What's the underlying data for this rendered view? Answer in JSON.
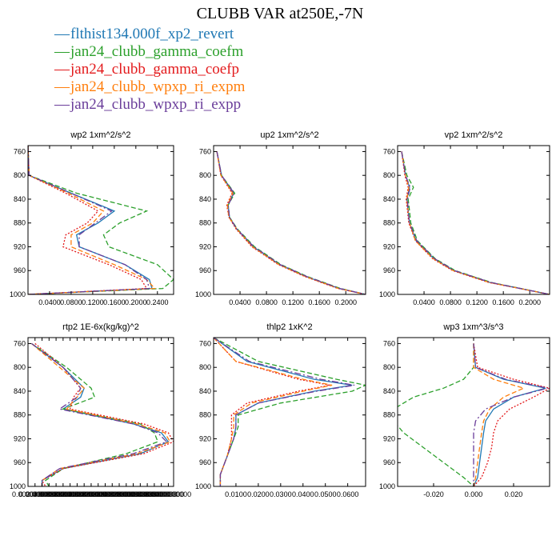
{
  "title": "CLUBB VAR at250E,-7N",
  "legend": [
    {
      "label": "flthist134.000f_xp2_revert",
      "color": "#1f78b4",
      "dash": "solid"
    },
    {
      "label": "jan24_clubb_gamma_coefm",
      "color": "#2ca02c",
      "dash": "dashed"
    },
    {
      "label": "jan24_clubb_gamma_coefp",
      "color": "#e31a1c",
      "dash": "dotted"
    },
    {
      "label": "jan24_clubb_wpxp_ri_expm",
      "color": "#ff7f0e",
      "dash": "dashed"
    },
    {
      "label": "jan24_clubb_wpxp_ri_expp",
      "color": "#6a3d9a",
      "dash": "dashdot"
    }
  ],
  "chart_data": [
    {
      "type": "line",
      "title": "wp2   1xm^2/s^2",
      "ylim": [
        1000,
        750
      ],
      "xlim": [
        0.0,
        0.27
      ],
      "y_ticks": [
        760,
        800,
        840,
        880,
        920,
        960,
        1000
      ],
      "x_ticks": [
        0.04,
        0.08,
        0.12,
        0.16,
        0.2,
        0.24
      ],
      "x_tick_labels": [
        "0.0400",
        "0.0800",
        "0.1200",
        "0.1600",
        "0.2000",
        "0.2400"
      ],
      "y": [
        750,
        800,
        830,
        860,
        880,
        900,
        920,
        950,
        975,
        990,
        1000
      ],
      "series": [
        {
          "values": [
            0.0,
            0.002,
            0.08,
            0.16,
            0.13,
            0.09,
            0.095,
            0.18,
            0.225,
            0.23,
            0.0
          ]
        },
        {
          "values": [
            0.0,
            0.002,
            0.09,
            0.22,
            0.17,
            0.14,
            0.15,
            0.24,
            0.27,
            0.25,
            0.0
          ]
        },
        {
          "values": [
            0.0,
            0.002,
            0.07,
            0.13,
            0.11,
            0.07,
            0.065,
            0.15,
            0.21,
            0.22,
            0.0
          ]
        },
        {
          "values": [
            0.0,
            0.002,
            0.075,
            0.14,
            0.12,
            0.08,
            0.08,
            0.16,
            0.22,
            0.235,
            0.0
          ]
        },
        {
          "values": [
            0.0,
            0.002,
            0.08,
            0.155,
            0.125,
            0.095,
            0.095,
            0.18,
            0.22,
            0.225,
            0.0
          ]
        }
      ]
    },
    {
      "type": "line",
      "title": "up2   1xm^2/s^2",
      "ylim": [
        1000,
        750
      ],
      "xlim": [
        0.0,
        0.23
      ],
      "y_ticks": [
        760,
        800,
        840,
        880,
        920,
        960,
        1000
      ],
      "x_ticks": [
        0.04,
        0.08,
        0.12,
        0.16,
        0.2
      ],
      "x_tick_labels": [
        "0.0400",
        "0.0800",
        "0.1200",
        "0.1600",
        "0.2000"
      ],
      "y": [
        760,
        800,
        830,
        850,
        870,
        890,
        920,
        950,
        970,
        990,
        1000
      ],
      "series": [
        {
          "values": [
            0.005,
            0.012,
            0.03,
            0.022,
            0.024,
            0.035,
            0.06,
            0.1,
            0.14,
            0.19,
            0.23
          ]
        },
        {
          "values": [
            0.005,
            0.012,
            0.032,
            0.022,
            0.024,
            0.036,
            0.062,
            0.102,
            0.142,
            0.192,
            0.23
          ]
        },
        {
          "values": [
            0.005,
            0.011,
            0.028,
            0.02,
            0.023,
            0.034,
            0.058,
            0.098,
            0.138,
            0.188,
            0.23
          ]
        },
        {
          "values": [
            0.005,
            0.011,
            0.029,
            0.021,
            0.023,
            0.035,
            0.059,
            0.099,
            0.139,
            0.189,
            0.23
          ]
        },
        {
          "values": [
            0.005,
            0.012,
            0.031,
            0.022,
            0.024,
            0.035,
            0.061,
            0.101,
            0.141,
            0.191,
            0.23
          ]
        }
      ]
    },
    {
      "type": "line",
      "title": "vp2   1xm^2/s^2",
      "ylim": [
        1000,
        750
      ],
      "xlim": [
        0.0,
        0.23
      ],
      "y_ticks": [
        760,
        800,
        840,
        880,
        920,
        960,
        1000
      ],
      "x_ticks": [
        0.04,
        0.08,
        0.12,
        0.16,
        0.2
      ],
      "x_tick_labels": [
        "0.0400",
        "0.0800",
        "0.1200",
        "0.1600",
        "0.2000"
      ],
      "y": [
        760,
        800,
        820,
        840,
        860,
        880,
        910,
        940,
        960,
        980,
        1000
      ],
      "series": [
        {
          "values": [
            0.006,
            0.012,
            0.018,
            0.014,
            0.016,
            0.018,
            0.028,
            0.055,
            0.085,
            0.14,
            0.23
          ]
        },
        {
          "values": [
            0.006,
            0.014,
            0.024,
            0.016,
            0.018,
            0.02,
            0.03,
            0.057,
            0.087,
            0.142,
            0.23
          ]
        },
        {
          "values": [
            0.006,
            0.011,
            0.016,
            0.013,
            0.015,
            0.017,
            0.027,
            0.053,
            0.083,
            0.138,
            0.23
          ]
        },
        {
          "values": [
            0.006,
            0.012,
            0.017,
            0.014,
            0.016,
            0.018,
            0.027,
            0.054,
            0.084,
            0.139,
            0.23
          ]
        },
        {
          "values": [
            0.006,
            0.012,
            0.019,
            0.015,
            0.016,
            0.018,
            0.029,
            0.056,
            0.086,
            0.141,
            0.23
          ]
        }
      ]
    },
    {
      "type": "line",
      "title": "rtp2   1E-6x(kg/kg)^2",
      "ylim": [
        1000,
        750
      ],
      "xlim": [
        0.0,
        0.0415
      ],
      "y_ticks": [
        760,
        800,
        840,
        880,
        920,
        960,
        1000
      ],
      "x_ticks": [
        0.002,
        0.004,
        0.006,
        0.008,
        0.01,
        0.012,
        0.014,
        0.016,
        0.018,
        0.02,
        0.022,
        0.024,
        0.026,
        0.028,
        0.03,
        0.032,
        0.034,
        0.036,
        0.038,
        0.04
      ],
      "x_tick_labels": [
        "0.0020000000",
        "0.0040000000",
        "0.0060000000",
        "0.0080000000",
        "0.0100000000",
        "0.0120000000",
        "0.0140000000",
        "0.0160000000",
        "0.0180000000",
        "0.0200000000",
        "0.0220000000",
        "0.0240000000",
        "0.0260000000",
        "0.0280000000",
        "0.0300000000",
        "0.0320000000",
        "0.0340000000",
        "0.0360000000",
        "0.0380000000",
        "0.0400000000"
      ],
      "y": [
        760,
        800,
        835,
        850,
        870,
        895,
        910,
        925,
        945,
        970,
        990,
        1000
      ],
      "series": [
        {
          "values": [
            0.001,
            0.01,
            0.016,
            0.015,
            0.01,
            0.03,
            0.038,
            0.04,
            0.032,
            0.01,
            0.004,
            0.004
          ]
        },
        {
          "values": [
            0.001,
            0.011,
            0.018,
            0.019,
            0.01,
            0.032,
            0.036,
            0.037,
            0.028,
            0.01,
            0.005,
            0.006
          ]
        },
        {
          "values": [
            0.002,
            0.01,
            0.015,
            0.013,
            0.012,
            0.033,
            0.04,
            0.0415,
            0.033,
            0.01,
            0.004,
            0.005
          ]
        },
        {
          "values": [
            0.001,
            0.009,
            0.016,
            0.014,
            0.011,
            0.031,
            0.039,
            0.0405,
            0.031,
            0.009,
            0.004,
            0.004
          ]
        },
        {
          "values": [
            0.001,
            0.01,
            0.015,
            0.014,
            0.009,
            0.03,
            0.037,
            0.0395,
            0.03,
            0.009,
            0.004,
            0.004
          ]
        }
      ]
    },
    {
      "type": "line",
      "title": "thlp2   1xK^2",
      "ylim": [
        1000,
        750
      ],
      "xlim": [
        0.0,
        0.068
      ],
      "y_ticks": [
        760,
        800,
        840,
        880,
        920,
        960,
        1000
      ],
      "x_ticks": [
        0.01,
        0.02,
        0.03,
        0.04,
        0.05,
        0.06
      ],
      "x_tick_labels": [
        "0.0100",
        "0.0200",
        "0.0300",
        "0.0400",
        "0.0500",
        "0.0600"
      ],
      "y": [
        750,
        790,
        820,
        830,
        840,
        860,
        880,
        900,
        920,
        950,
        980,
        1000
      ],
      "series": [
        {
          "values": [
            0.0,
            0.015,
            0.045,
            0.062,
            0.045,
            0.02,
            0.01,
            0.01,
            0.009,
            0.006,
            0.003,
            0.003
          ]
        },
        {
          "values": [
            0.0,
            0.02,
            0.055,
            0.068,
            0.062,
            0.03,
            0.011,
            0.011,
            0.009,
            0.006,
            0.003,
            0.003
          ]
        },
        {
          "values": [
            0.0,
            0.01,
            0.038,
            0.052,
            0.038,
            0.015,
            0.008,
            0.008,
            0.008,
            0.006,
            0.003,
            0.003
          ]
        },
        {
          "values": [
            0.0,
            0.01,
            0.04,
            0.053,
            0.04,
            0.017,
            0.009,
            0.009,
            0.008,
            0.006,
            0.003,
            0.003
          ]
        },
        {
          "values": [
            0.0,
            0.016,
            0.048,
            0.063,
            0.046,
            0.02,
            0.01,
            0.01,
            0.009,
            0.006,
            0.003,
            0.003
          ]
        }
      ]
    },
    {
      "type": "line",
      "title": "wp3   1xm^3/s^3",
      "ylim": [
        1000,
        750
      ],
      "xlim": [
        -0.038,
        0.038
      ],
      "y_ticks": [
        760,
        800,
        840,
        880,
        920,
        960,
        1000
      ],
      "x_ticks": [
        -0.02,
        0.0,
        0.02
      ],
      "x_tick_labels": [
        "-0.020",
        "0.000",
        "0.020"
      ],
      "y": [
        760,
        800,
        820,
        835,
        850,
        870,
        890,
        910,
        935,
        960,
        985,
        1000
      ],
      "series": [
        {
          "values": [
            0.0,
            0.001,
            0.015,
            0.036,
            0.02,
            0.01,
            0.006,
            0.005,
            0.004,
            0.003,
            0.002,
            0.0
          ]
        },
        {
          "values": [
            0.0,
            0.0,
            -0.005,
            -0.015,
            -0.03,
            -0.04,
            -0.04,
            -0.035,
            -0.025,
            -0.015,
            -0.005,
            0.0
          ]
        },
        {
          "values": [
            0.0,
            0.002,
            0.02,
            0.038,
            0.03,
            0.018,
            0.012,
            0.01,
            0.009,
            0.007,
            0.004,
            0.0
          ]
        },
        {
          "values": [
            0.0,
            0.0,
            0.01,
            0.025,
            0.015,
            0.008,
            0.005,
            0.004,
            0.003,
            0.002,
            0.001,
            0.0
          ]
        },
        {
          "values": [
            0.0,
            0.001,
            0.016,
            0.037,
            0.02,
            0.006,
            0.001,
            0.0,
            0.0,
            0.0,
            0.0,
            0.0
          ]
        }
      ]
    }
  ]
}
